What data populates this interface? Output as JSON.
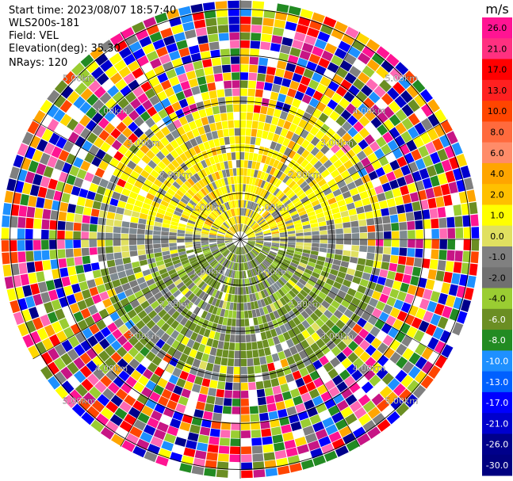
{
  "header": {
    "start_time": "Start time: 2023/08/07 18:57:40",
    "instrument": "WLS200s-181",
    "field": "Field: VEL",
    "elevation": "Elevation(deg): 35.30",
    "nrays": "NRays: 120"
  },
  "chart_data": {
    "type": "heatmap",
    "projection": "polar-ppi",
    "field": "VEL",
    "units": "m/s",
    "n_rays": 120,
    "elevation_deg": 35.3,
    "range_rings_km": [
      1.0,
      2.0,
      3.0,
      4.0,
      5.0
    ],
    "range_ring_labels": [
      "1.00km",
      "2.00km",
      "3.00km",
      "4.00km",
      "5.00km"
    ],
    "colorbar": {
      "title": "m/s",
      "ticks": [
        "26.0",
        "21.0",
        "17.0",
        "13.0",
        "10.0",
        "8.0",
        "6.0",
        "4.0",
        "2.0",
        "1.0",
        "0.0",
        "-1.0",
        "-2.0",
        "-4.0",
        "-6.0",
        "-8.0",
        "-10.0",
        "-13.0",
        "-17.0",
        "-21.0",
        "-26.0",
        "-30.0"
      ],
      "colors": [
        "#ff1493",
        "#ff3080",
        "#ff0000",
        "#ff2020",
        "#ff4500",
        "#ff6a3d",
        "#ff8c69",
        "#ffa500",
        "#ffc000",
        "#ffff00",
        "#e0e060",
        "#808080",
        "#707070",
        "#9acd32",
        "#6b8e23",
        "#228b22",
        "#1e90ff",
        "#0060ff",
        "#0000ff",
        "#0000cd",
        "#00008b",
        "#000080"
      ]
    },
    "pattern": "Near range (< ~3 km) dominated by yellow/orange (+1 to +6 m/s) to the north and grey/olive (-2 to +1 m/s) to the south; outer ranges noisy multicolor (full scale)"
  }
}
